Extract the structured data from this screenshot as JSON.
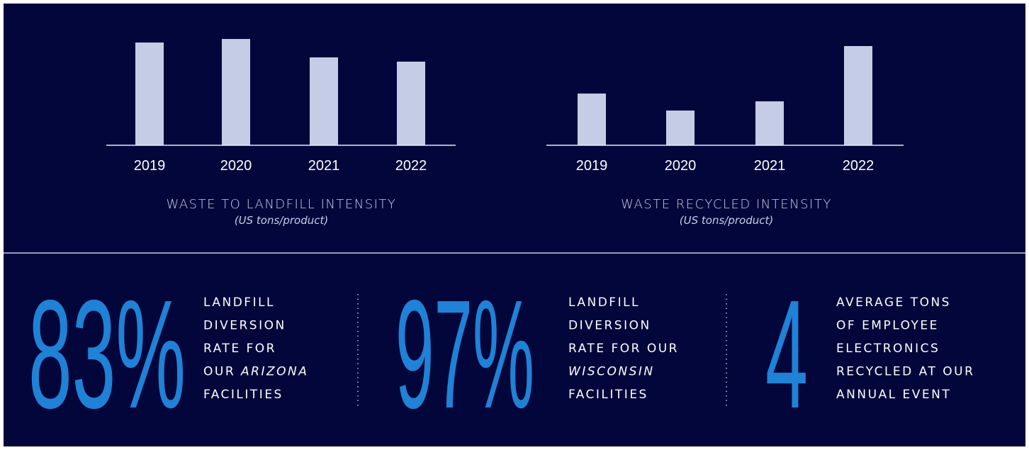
{
  "chart_data": [
    {
      "type": "bar",
      "title": "WASTE TO LANDFILL INTENSITY",
      "subtitle": "(US tons/product)",
      "categories": [
        "2019",
        "2020",
        "2021",
        "2022"
      ],
      "values": [
        145,
        150,
        124,
        118
      ],
      "color": "#c5cde6"
    },
    {
      "type": "bar",
      "title": "WASTE RECYCLED INTENSITY",
      "subtitle": "(US tons/product)",
      "categories": [
        "2019",
        "2020",
        "2021",
        "2022"
      ],
      "values": [
        73,
        49,
        62,
        140
      ],
      "color": "#c5cde6"
    }
  ],
  "stats": [
    {
      "value": "83%",
      "lines": [
        [
          {
            "text": "LANDFILL",
            "italic": false
          }
        ],
        [
          {
            "text": "DIVERSION",
            "italic": false
          }
        ],
        [
          {
            "text": "RATE FOR",
            "italic": false
          }
        ],
        [
          {
            "text": "OUR ",
            "italic": false
          },
          {
            "text": "ARIZONA",
            "italic": true
          }
        ],
        [
          {
            "text": "FACILITIES",
            "italic": false
          }
        ]
      ]
    },
    {
      "value": "97%",
      "lines": [
        [
          {
            "text": "LANDFILL",
            "italic": false
          }
        ],
        [
          {
            "text": "DIVERSION",
            "italic": false
          }
        ],
        [
          {
            "text": "RATE FOR OUR",
            "italic": false
          }
        ],
        [
          {
            "text": "WISCONSIN",
            "italic": true
          }
        ],
        [
          {
            "text": "FACILITIES",
            "italic": false
          }
        ]
      ]
    },
    {
      "value": "4",
      "lines": [
        [
          {
            "text": "AVERAGE TONS",
            "italic": false
          }
        ],
        [
          {
            "text": "OF EMPLOYEE",
            "italic": false
          }
        ],
        [
          {
            "text": "ELECTRONICS",
            "italic": false
          }
        ],
        [
          {
            "text": "RECYCLED AT OUR",
            "italic": false
          }
        ],
        [
          {
            "text": "ANNUAL EVENT",
            "italic": false
          }
        ]
      ]
    }
  ]
}
